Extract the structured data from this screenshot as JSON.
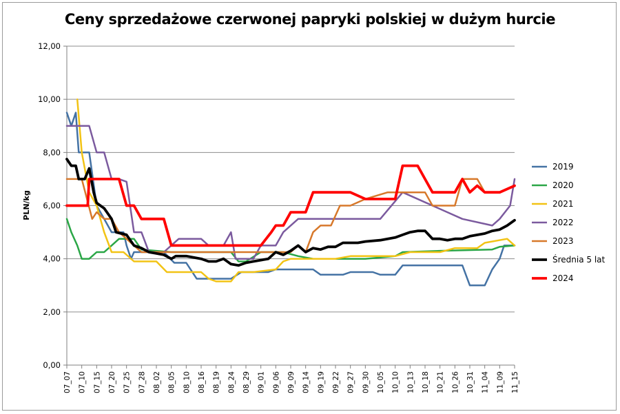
{
  "chart_data": {
    "type": "line",
    "title": "Ceny sprzedażowe czerwonej papryki polskiej w dużym hurcie",
    "ylabel": "PLN/kg",
    "xlabel": "",
    "ylim": [
      0,
      12
    ],
    "y_ticks": [
      "0,00",
      "2,00",
      "4,00",
      "6,00",
      "8,00",
      "10,00",
      "12,00"
    ],
    "grid": "horizontal",
    "legend_position": "right",
    "x_tick_labels": [
      "07_07",
      "07_10",
      "07_15",
      "07_20",
      "07_25",
      "07_28",
      "08_02",
      "08_05",
      "08_10",
      "08_16",
      "08_19",
      "08_24",
      "08_29",
      "09_01",
      "09_06",
      "09_09",
      "09_14",
      "09_19",
      "09_22",
      "09_27",
      "09_30",
      "10_05",
      "10_10",
      "10_13",
      "10_18",
      "10_21",
      "10_26",
      "10_31",
      "11_04",
      "11_09",
      "11_15"
    ],
    "series": [
      {
        "name": "2019",
        "color": "#4472a4",
        "width": 2.5,
        "points": [
          [
            0,
            9.5
          ],
          [
            0.3,
            9.0
          ],
          [
            0.6,
            9.5
          ],
          [
            0.8,
            8.0
          ],
          [
            1.5,
            8.0
          ],
          [
            2.0,
            6.0
          ],
          [
            2.5,
            5.5
          ],
          [
            3.0,
            5.0
          ],
          [
            3.8,
            5.0
          ],
          [
            4.0,
            4.5
          ],
          [
            4.3,
            4.0
          ],
          [
            4.5,
            4.25
          ],
          [
            6.5,
            4.25
          ],
          [
            7.2,
            3.85
          ],
          [
            8.0,
            3.85
          ],
          [
            8.7,
            3.25
          ],
          [
            9.5,
            3.25
          ],
          [
            10.0,
            3.25
          ],
          [
            11.0,
            3.25
          ],
          [
            11.7,
            3.5
          ],
          [
            12.5,
            3.5
          ],
          [
            13.5,
            3.5
          ],
          [
            14.0,
            3.6
          ],
          [
            16.0,
            3.6
          ],
          [
            16.5,
            3.6
          ],
          [
            17.0,
            3.4
          ],
          [
            18.5,
            3.4
          ],
          [
            19.0,
            3.5
          ],
          [
            20.5,
            3.5
          ],
          [
            21.0,
            3.4
          ],
          [
            22.0,
            3.4
          ],
          [
            22.5,
            3.75
          ],
          [
            26.5,
            3.75
          ],
          [
            27.0,
            3.0
          ],
          [
            28.0,
            3.0
          ],
          [
            28.5,
            3.6
          ],
          [
            29.0,
            4.0
          ],
          [
            29.3,
            4.5
          ],
          [
            30.0,
            4.5
          ]
        ]
      },
      {
        "name": "2020",
        "color": "#2aa646",
        "width": 2.5,
        "points": [
          [
            0,
            5.5
          ],
          [
            0.3,
            5.0
          ],
          [
            0.7,
            4.5
          ],
          [
            1.0,
            4.0
          ],
          [
            1.5,
            4.0
          ],
          [
            2.0,
            4.25
          ],
          [
            2.5,
            4.25
          ],
          [
            3.0,
            4.5
          ],
          [
            3.5,
            4.75
          ],
          [
            4.5,
            4.75
          ],
          [
            5.0,
            4.35
          ],
          [
            7.0,
            4.25
          ],
          [
            11.0,
            4.25
          ],
          [
            11.5,
            3.9
          ],
          [
            12.0,
            3.9
          ],
          [
            13.0,
            4.25
          ],
          [
            13.5,
            4.25
          ],
          [
            14.5,
            4.25
          ],
          [
            15.5,
            4.1
          ],
          [
            16.5,
            4.0
          ],
          [
            18.0,
            4.0
          ],
          [
            19.0,
            4.0
          ],
          [
            20.0,
            4.0
          ],
          [
            22.0,
            4.1
          ],
          [
            22.5,
            4.25
          ],
          [
            25.0,
            4.3
          ],
          [
            28.5,
            4.35
          ],
          [
            29.0,
            4.45
          ],
          [
            30.0,
            4.5
          ]
        ]
      },
      {
        "name": "2021",
        "color": "#f2c314",
        "width": 2.5,
        "points": [
          [
            0.7,
            10.0
          ],
          [
            1.0,
            8.0
          ],
          [
            1.5,
            6.5
          ],
          [
            2.0,
            6.0
          ],
          [
            2.5,
            5.0
          ],
          [
            3.0,
            4.25
          ],
          [
            3.8,
            4.25
          ],
          [
            4.5,
            3.9
          ],
          [
            6.0,
            3.9
          ],
          [
            6.7,
            3.5
          ],
          [
            9.0,
            3.5
          ],
          [
            9.5,
            3.25
          ],
          [
            10.0,
            3.15
          ],
          [
            11.0,
            3.15
          ],
          [
            11.5,
            3.5
          ],
          [
            12.5,
            3.5
          ],
          [
            14.0,
            3.6
          ],
          [
            14.5,
            3.9
          ],
          [
            15.0,
            4.0
          ],
          [
            16.0,
            4.0
          ],
          [
            16.5,
            4.0
          ],
          [
            18.0,
            4.0
          ],
          [
            19.0,
            4.1
          ],
          [
            21.0,
            4.1
          ],
          [
            22.0,
            4.1
          ],
          [
            23.0,
            4.25
          ],
          [
            25.0,
            4.25
          ],
          [
            26.0,
            4.4
          ],
          [
            27.5,
            4.4
          ],
          [
            28.0,
            4.6
          ],
          [
            29.5,
            4.75
          ],
          [
            30.0,
            4.5
          ]
        ]
      },
      {
        "name": "2022",
        "color": "#7b5a9e",
        "width": 2.5,
        "points": [
          [
            0,
            9.0
          ],
          [
            1.5,
            9.0
          ],
          [
            2.0,
            8.0
          ],
          [
            2.5,
            8.0
          ],
          [
            3.0,
            7.0
          ],
          [
            3.5,
            7.0
          ],
          [
            4.0,
            6.9
          ],
          [
            4.5,
            5.0
          ],
          [
            5.0,
            5.0
          ],
          [
            5.5,
            4.25
          ],
          [
            6.5,
            4.25
          ],
          [
            7.5,
            4.75
          ],
          [
            9.0,
            4.75
          ],
          [
            9.5,
            4.5
          ],
          [
            10.5,
            4.5
          ],
          [
            11.0,
            5.0
          ],
          [
            11.3,
            4.0
          ],
          [
            12.0,
            4.0
          ],
          [
            12.5,
            4.0
          ],
          [
            13.0,
            4.5
          ],
          [
            14.0,
            4.5
          ],
          [
            14.5,
            5.0
          ],
          [
            15.0,
            5.25
          ],
          [
            15.5,
            5.5
          ],
          [
            18.0,
            5.5
          ],
          [
            21.0,
            5.5
          ],
          [
            22.5,
            6.5
          ],
          [
            26.5,
            5.5
          ],
          [
            28.5,
            5.25
          ],
          [
            29.0,
            5.5
          ],
          [
            29.7,
            6.0
          ],
          [
            30.0,
            7.0
          ]
        ]
      },
      {
        "name": "2023",
        "color": "#d7782a",
        "width": 2.5,
        "points": [
          [
            0,
            7.0
          ],
          [
            1.0,
            7.0
          ],
          [
            1.7,
            5.5
          ],
          [
            2.0,
            5.75
          ],
          [
            2.5,
            5.5
          ],
          [
            3.0,
            5.5
          ],
          [
            3.5,
            5.0
          ],
          [
            4.0,
            4.75
          ],
          [
            4.5,
            4.5
          ],
          [
            5.0,
            4.25
          ],
          [
            9.0,
            4.25
          ],
          [
            12.0,
            4.25
          ],
          [
            13.0,
            4.25
          ],
          [
            14.0,
            4.25
          ],
          [
            15.0,
            4.25
          ],
          [
            15.5,
            4.5
          ],
          [
            16.0,
            4.25
          ],
          [
            16.5,
            5.0
          ],
          [
            17.0,
            5.25
          ],
          [
            17.7,
            5.25
          ],
          [
            18.3,
            6.0
          ],
          [
            19.0,
            6.0
          ],
          [
            20.0,
            6.25
          ],
          [
            21.5,
            6.5
          ],
          [
            23.0,
            6.5
          ],
          [
            24.0,
            6.5
          ],
          [
            24.5,
            6.0
          ],
          [
            26.0,
            6.0
          ],
          [
            26.5,
            7.0
          ],
          [
            27.5,
            7.0
          ],
          [
            28.0,
            6.5
          ],
          [
            29.0,
            6.5
          ],
          [
            30.0,
            6.75
          ]
        ]
      },
      {
        "name": "Średnia 5 lat",
        "color": "#000000",
        "width": 3.8,
        "points": [
          [
            0,
            7.75
          ],
          [
            0.3,
            7.5
          ],
          [
            0.6,
            7.5
          ],
          [
            0.8,
            7.0
          ],
          [
            1.2,
            7.0
          ],
          [
            1.5,
            7.4
          ],
          [
            1.8,
            6.5
          ],
          [
            2.0,
            6.1
          ],
          [
            2.5,
            5.9
          ],
          [
            3.0,
            5.5
          ],
          [
            3.3,
            5.0
          ],
          [
            4.0,
            4.9
          ],
          [
            4.5,
            4.5
          ],
          [
            5.0,
            4.4
          ],
          [
            5.5,
            4.25
          ],
          [
            6.0,
            4.2
          ],
          [
            6.5,
            4.15
          ],
          [
            7.0,
            4.0
          ],
          [
            7.3,
            4.1
          ],
          [
            8.0,
            4.1
          ],
          [
            8.5,
            4.05
          ],
          [
            9.0,
            4.0
          ],
          [
            9.5,
            3.9
          ],
          [
            10.0,
            3.9
          ],
          [
            10.5,
            4.0
          ],
          [
            11.0,
            3.8
          ],
          [
            11.5,
            3.75
          ],
          [
            12.0,
            3.85
          ],
          [
            12.5,
            3.9
          ],
          [
            13.0,
            3.95
          ],
          [
            13.5,
            4.0
          ],
          [
            14.0,
            4.25
          ],
          [
            14.5,
            4.15
          ],
          [
            15.0,
            4.3
          ],
          [
            15.5,
            4.5
          ],
          [
            16.0,
            4.25
          ],
          [
            16.5,
            4.4
          ],
          [
            17.0,
            4.35
          ],
          [
            17.5,
            4.45
          ],
          [
            18.0,
            4.45
          ],
          [
            18.5,
            4.6
          ],
          [
            19.5,
            4.6
          ],
          [
            20.0,
            4.65
          ],
          [
            21.0,
            4.7
          ],
          [
            22.0,
            4.8
          ],
          [
            22.5,
            4.9
          ],
          [
            23.0,
            5.0
          ],
          [
            23.5,
            5.05
          ],
          [
            24.0,
            5.05
          ],
          [
            24.5,
            4.75
          ],
          [
            25.0,
            4.75
          ],
          [
            25.5,
            4.7
          ],
          [
            26.0,
            4.75
          ],
          [
            26.5,
            4.75
          ],
          [
            27.0,
            4.85
          ],
          [
            28.0,
            4.95
          ],
          [
            28.5,
            5.05
          ],
          [
            29.0,
            5.1
          ],
          [
            29.5,
            5.25
          ],
          [
            30.0,
            5.45
          ]
        ]
      },
      {
        "name": "2024",
        "color": "#ff0000",
        "width": 3.8,
        "points": [
          [
            0,
            6.0
          ],
          [
            1.0,
            6.0
          ],
          [
            1.4,
            6.0
          ],
          [
            1.5,
            7.0
          ],
          [
            3.0,
            7.0
          ],
          [
            3.5,
            7.0
          ],
          [
            4.0,
            6.0
          ],
          [
            4.5,
            6.0
          ],
          [
            5.0,
            5.5
          ],
          [
            6.5,
            5.5
          ],
          [
            7.0,
            4.5
          ],
          [
            8.0,
            4.5
          ],
          [
            11.0,
            4.5
          ],
          [
            12.0,
            4.5
          ],
          [
            13.0,
            4.5
          ],
          [
            13.7,
            5.0
          ],
          [
            14.0,
            5.25
          ],
          [
            14.5,
            5.25
          ],
          [
            15.0,
            5.75
          ],
          [
            16.0,
            5.75
          ],
          [
            16.5,
            6.5
          ],
          [
            17.0,
            6.5
          ],
          [
            19.0,
            6.5
          ],
          [
            20.0,
            6.25
          ],
          [
            21.0,
            6.25
          ],
          [
            22.0,
            6.25
          ],
          [
            22.5,
            7.5
          ],
          [
            23.5,
            7.5
          ],
          [
            24.0,
            7.0
          ],
          [
            24.5,
            6.5
          ],
          [
            26.0,
            6.5
          ],
          [
            26.5,
            7.0
          ],
          [
            27.0,
            6.5
          ],
          [
            27.5,
            6.75
          ],
          [
            28.0,
            6.5
          ],
          [
            29.0,
            6.5
          ],
          [
            30.0,
            6.75
          ]
        ]
      }
    ]
  }
}
